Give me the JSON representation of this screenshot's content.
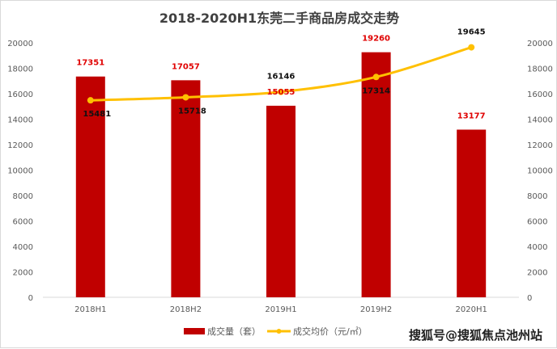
{
  "chart_data": {
    "type": "bar+line",
    "title": "2018-2020H1东莞二手商品房成交走势",
    "categories": [
      "2018H1",
      "2018H2",
      "2019H1",
      "2019H2",
      "2020H1"
    ],
    "series": [
      {
        "name": "成交量（套）",
        "type": "bar",
        "axis": "left",
        "values": [
          17351,
          17057,
          15055,
          19260,
          13177
        ],
        "color": "#c00000",
        "label_color": "#e00000"
      },
      {
        "name": "成交均价（元/㎡）",
        "type": "line",
        "axis": "right",
        "smooth": true,
        "values": [
          15481,
          15718,
          16146,
          17314,
          19645
        ],
        "color": "#ffc000",
        "label_color": "#111111"
      }
    ],
    "ylim": [
      0,
      20000
    ],
    "y2lim": [
      0,
      20000
    ],
    "yticks": [
      0,
      2000,
      4000,
      6000,
      8000,
      10000,
      12000,
      14000,
      16000,
      18000,
      20000
    ],
    "grid": false,
    "legend": "bottom"
  },
  "watermark": "搜狐号@搜狐焦点池州站"
}
